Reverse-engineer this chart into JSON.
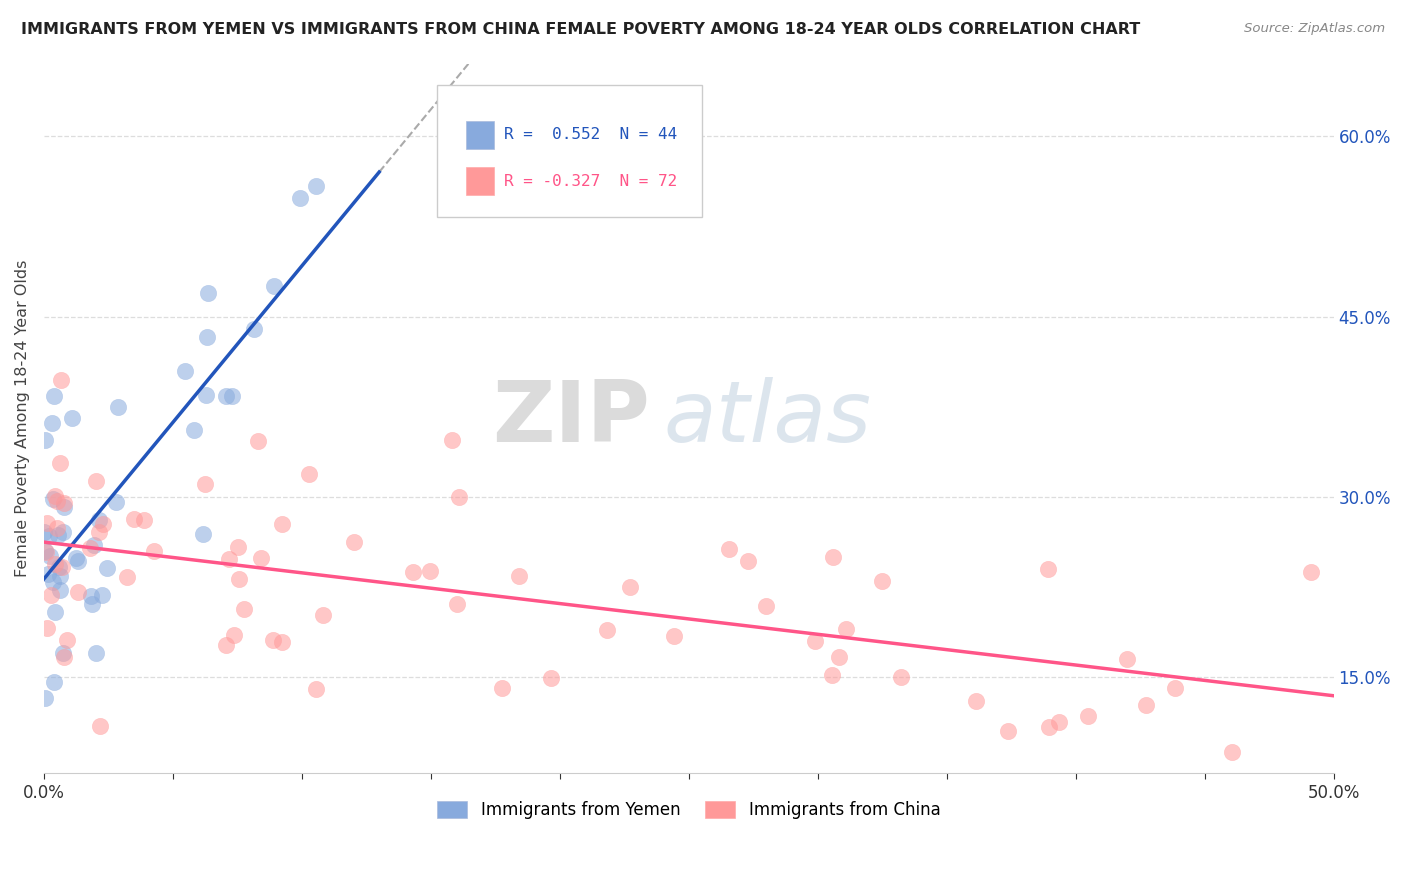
{
  "title": "IMMIGRANTS FROM YEMEN VS IMMIGRANTS FROM CHINA FEMALE POVERTY AMONG 18-24 YEAR OLDS CORRELATION CHART",
  "source": "Source: ZipAtlas.com",
  "ylabel": "Female Poverty Among 18-24 Year Olds",
  "y_ticks_right": [
    0.15,
    0.3,
    0.45,
    0.6
  ],
  "xlim": [
    0.0,
    0.5
  ],
  "ylim": [
    0.07,
    0.66
  ],
  "legend_r_yemen": "R =  0.552",
  "legend_n_yemen": "N = 44",
  "legend_r_china": "R = -0.327",
  "legend_n_china": "N = 72",
  "legend_label_yemen": "Immigrants from Yemen",
  "legend_label_china": "Immigrants from China",
  "color_yemen": "#88AADD",
  "color_china": "#FF9999",
  "line_color_yemen": "#2255BB",
  "line_color_china": "#FF5588",
  "background_color": "#FFFFFF",
  "watermark_zip": "ZIP",
  "watermark_atlas": "atlas",
  "grid_color": "#DDDDDD"
}
